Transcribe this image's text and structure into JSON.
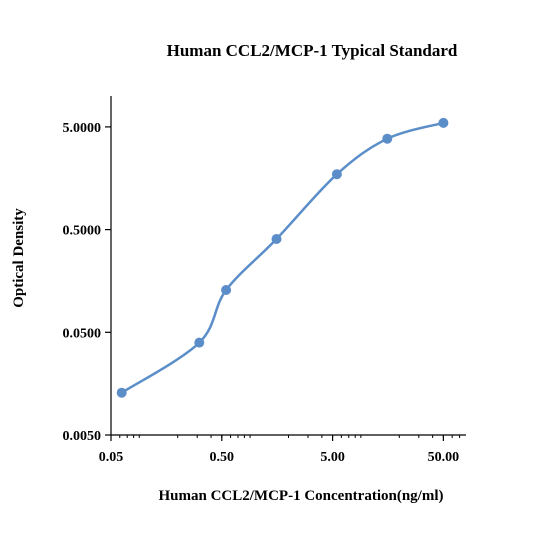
{
  "chart_data": {
    "type": "line",
    "title": "Human  CCL2/MCP-1  Typical Standard",
    "xlabel": "Human  CCL2/MCP-1  Concentration(ng/ml)",
    "ylabel": "Optical Density",
    "x_scale": "log",
    "y_scale": "log",
    "xlim": [
      0.05,
      80
    ],
    "ylim": [
      0.005,
      10
    ],
    "x_ticks": [
      0.05,
      0.5,
      5,
      50
    ],
    "x_tick_labels": [
      "0.05",
      "0.50",
      "5.00",
      "50.00"
    ],
    "y_ticks": [
      0.005,
      0.05,
      0.5,
      5
    ],
    "y_tick_labels": [
      "0.0050",
      "0.0500",
      "0.5000",
      "5.0000"
    ],
    "grid": false,
    "legend": "none",
    "series": [
      {
        "color": "#5b8ec9",
        "x": [
          0.0625,
          0.313,
          0.547,
          1.56,
          5.47,
          15.6,
          50
        ],
        "y": [
          0.0129,
          0.0397,
          0.129,
          0.405,
          1.73,
          3.84,
          5.47
        ]
      }
    ]
  }
}
